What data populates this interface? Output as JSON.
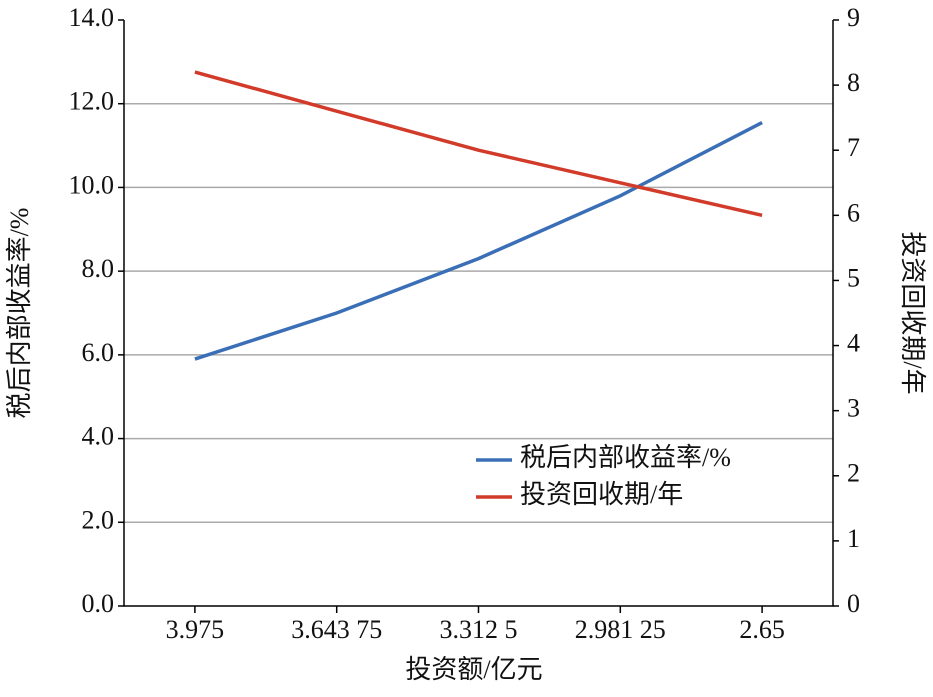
{
  "chart_data": {
    "type": "line",
    "x_label": "投资额/亿元",
    "y_label": "税后内部收益率/%",
    "y2_label": "投资回收期/年",
    "categories": [
      "3.975",
      "3.643 75",
      "3.312 5",
      "2.981 25",
      "2.65"
    ],
    "series": [
      {
        "name": "税后内部收益率/%",
        "color": "#3a6fb7",
        "values": [
          5.9,
          7.0,
          8.3,
          9.8,
          11.55
        ]
      },
      {
        "name": "投资回收期/年",
        "color": "#d23a2a",
        "axis": "y2",
        "values": [
          8.2,
          7.6,
          7.0,
          6.5,
          6.0
        ]
      }
    ],
    "ylim": [
      0,
      14
    ],
    "yticks": [
      {
        "value": 0,
        "label": "0.0"
      },
      {
        "value": 2,
        "label": "2.0"
      },
      {
        "value": 4,
        "label": "4.0"
      },
      {
        "value": 6,
        "label": "6.0"
      },
      {
        "value": 8,
        "label": "8.0"
      },
      {
        "value": 10,
        "label": "10.0"
      },
      {
        "value": 12,
        "label": "12.0"
      },
      {
        "value": 14,
        "label": "14.0"
      }
    ],
    "y2lim": [
      0,
      9
    ],
    "y2ticks": [
      0,
      1,
      2,
      3,
      4,
      5,
      6,
      7,
      8,
      9
    ],
    "grid": true
  }
}
